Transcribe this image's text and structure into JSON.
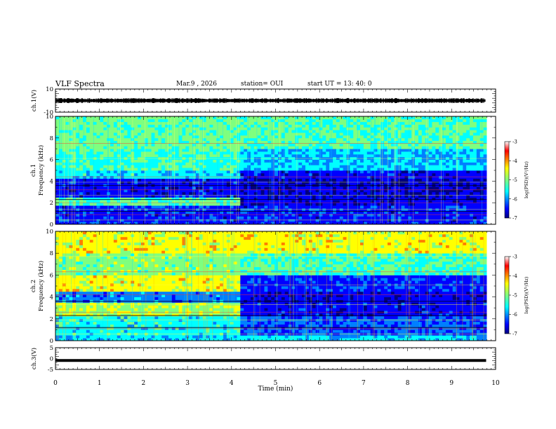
{
  "header": {
    "title": "VLF Spectra",
    "date": "Mar.9 , 2026",
    "station": "station= OUI",
    "start": "start UT =  13: 40: 0"
  },
  "chart_data": [
    {
      "type": "line",
      "name": "ch1-waveform",
      "ylabel": "ch.1(V)",
      "ylim": [
        -10,
        10
      ],
      "yticks": [
        "10",
        "-10"
      ],
      "xlim": [
        0,
        10
      ],
      "trace_level": 0,
      "trace_amplitude": 2
    },
    {
      "type": "heatmap",
      "name": "ch1-spectrogram",
      "ylabel": "ch.1 Frequency (kHz)",
      "ylim": [
        0,
        10
      ],
      "yticks": [
        "0",
        "2",
        "4",
        "6",
        "8",
        "10"
      ],
      "xlim": [
        0,
        10
      ],
      "data_end_min": 9.8,
      "regime_change_min": 4.2,
      "colorbar": {
        "label": "log(PSD)(V²/Hz)",
        "ticks": [
          "-3",
          "-4",
          "-5",
          "-6",
          "-7"
        ],
        "range": [
          -7,
          -3
        ]
      }
    },
    {
      "type": "heatmap",
      "name": "ch2-spectrogram",
      "ylabel": "ch.2 Frequency (kHz)",
      "ylim": [
        0,
        10
      ],
      "yticks": [
        "0",
        "2",
        "4",
        "6",
        "8",
        "10"
      ],
      "xlim": [
        0,
        10
      ],
      "data_end_min": 9.8,
      "regime_change_min": 4.2,
      "colorbar": {
        "label": "log(PSD)(V²/Hz)",
        "ticks": [
          "-3",
          "-4",
          "-5",
          "-6",
          "-7"
        ],
        "range": [
          -7,
          -3
        ]
      }
    },
    {
      "type": "line",
      "name": "ch3-signal",
      "ylabel": "ch.3(V)",
      "ylim": [
        -5,
        5
      ],
      "yticks": [
        "5",
        "0",
        "-5"
      ],
      "xlim": [
        0,
        10
      ],
      "trace_level": -0.9
    }
  ],
  "xaxis": {
    "label": "Time (min)",
    "ticks": [
      "0",
      "1",
      "2",
      "3",
      "4",
      "5",
      "6",
      "7",
      "8",
      "9",
      "10"
    ]
  },
  "colors": {
    "jet": [
      "#00007f",
      "#0000ff",
      "#007fff",
      "#00ffff",
      "#7fff7f",
      "#ffff00",
      "#ff7f00",
      "#ff0000",
      "#7f0000"
    ]
  }
}
